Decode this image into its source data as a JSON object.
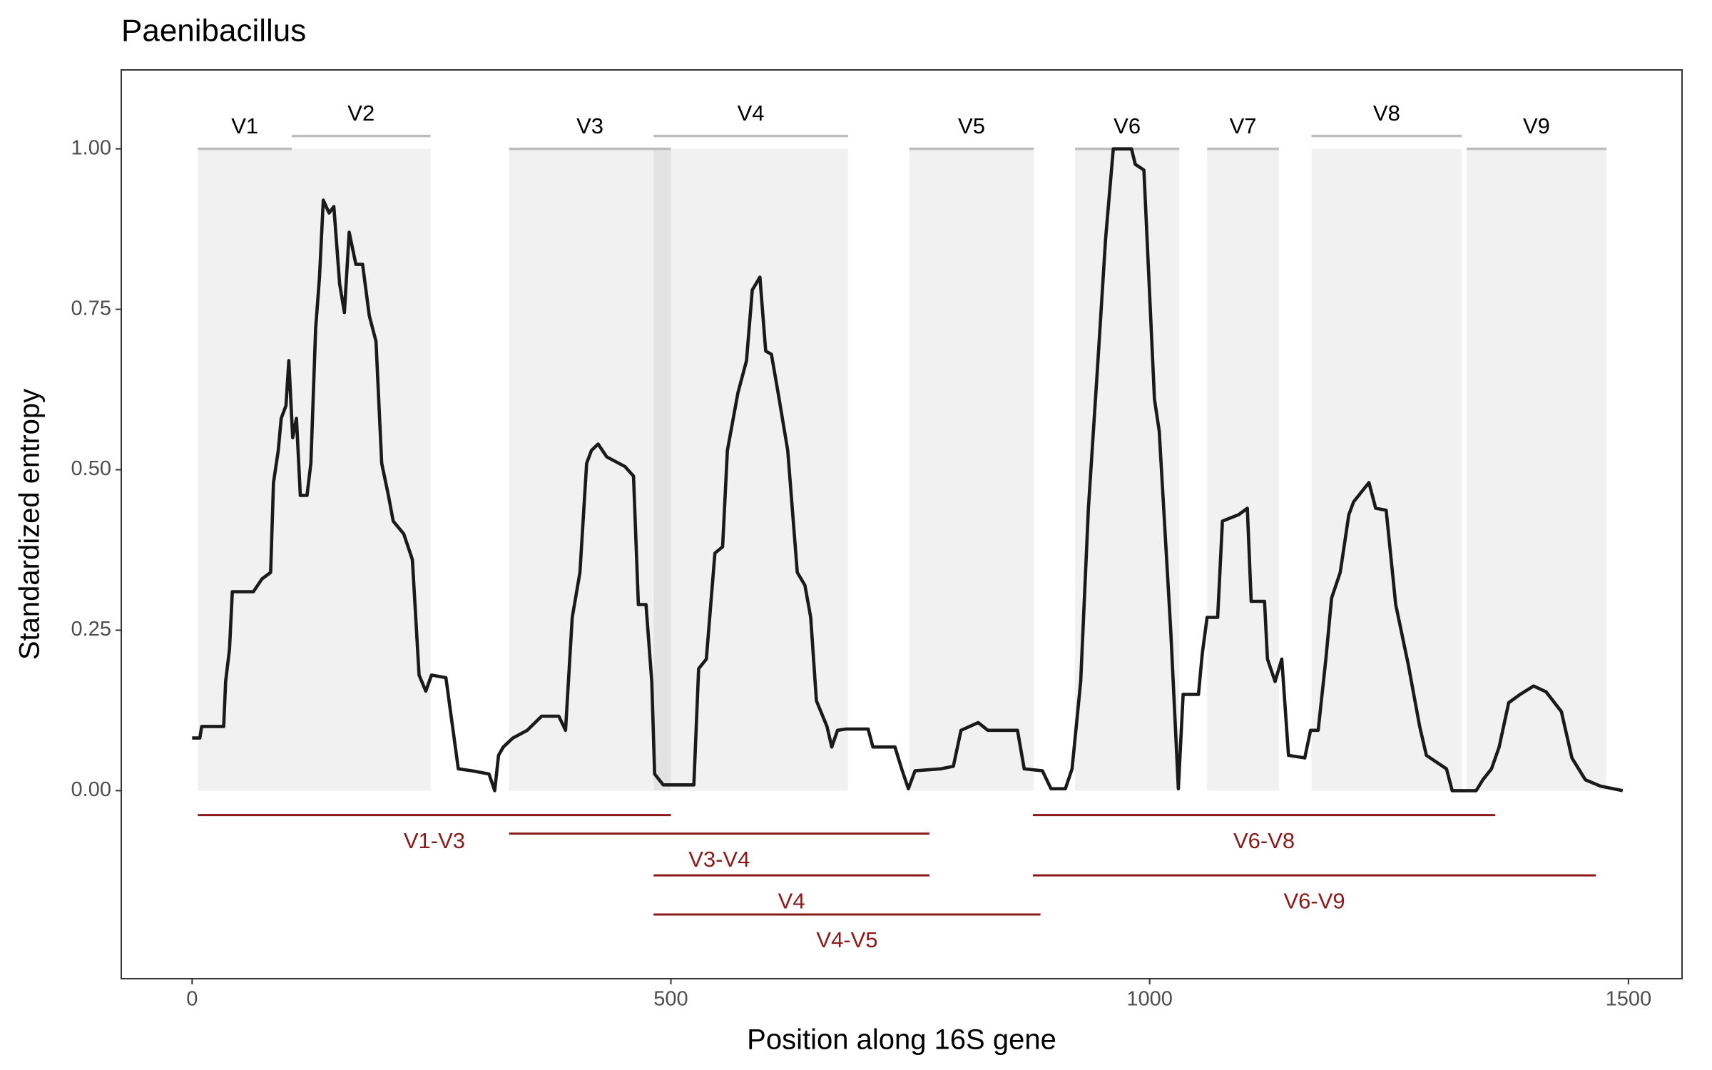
{
  "chart_data": {
    "type": "line",
    "title": "Paenibacillus",
    "x_label": "Position along 16S gene",
    "y_label": "Standardized entropy",
    "color": "#1a1a1a",
    "xlim": [
      -74,
      1556
    ],
    "ylim": [
      -0.293,
      1.123
    ],
    "xticks": [
      0,
      500,
      1000,
      1500
    ],
    "yticks": [
      {
        "value": 0,
        "label": "0.00"
      },
      {
        "value": 0.25,
        "label": "0.25"
      },
      {
        "value": 0.5,
        "label": "0.50"
      },
      {
        "value": 0.75,
        "label": "0.75"
      },
      {
        "value": 1,
        "label": "1.00"
      }
    ],
    "grid": false,
    "x": [
      0,
      8,
      10,
      33,
      35,
      39,
      42,
      64,
      73,
      82,
      85,
      90,
      93,
      98,
      101,
      105,
      109,
      113,
      120,
      124,
      129,
      133,
      137,
      143,
      148,
      154,
      159,
      164,
      171,
      178,
      185,
      192,
      198,
      205,
      210,
      221,
      230,
      237,
      244,
      250,
      265,
      272,
      278,
      292,
      310,
      316,
      320,
      325,
      335,
      350,
      365,
      383,
      390,
      397,
      405,
      412,
      417,
      424,
      433,
      452,
      461,
      466,
      474,
      480,
      483,
      492,
      524,
      529,
      537,
      546,
      554,
      559,
      570,
      579,
      585,
      593,
      599,
      605,
      612,
      622,
      632,
      640,
      646,
      652,
      663,
      668,
      674,
      683,
      706,
      711,
      734,
      741,
      748,
      755,
      782,
      795,
      803,
      821,
      831,
      862,
      869,
      888,
      897,
      912,
      919,
      928,
      936,
      946,
      954,
      962,
      981,
      985,
      994,
      1005,
      1010,
      1022,
      1030,
      1035,
      1051,
      1055,
      1060,
      1071,
      1076,
      1093,
      1102,
      1106,
      1120,
      1123,
      1131,
      1138,
      1145,
      1162,
      1168,
      1176,
      1184,
      1190,
      1199,
      1208,
      1213,
      1229,
      1236,
      1247,
      1257,
      1270,
      1282,
      1289,
      1310,
      1316,
      1341,
      1348,
      1357,
      1365,
      1375,
      1387,
      1401,
      1414,
      1430,
      1441,
      1455,
      1471,
      1494
    ],
    "values": [
      0.082,
      0.082,
      0.1,
      0.1,
      0.17,
      0.22,
      0.31,
      0.31,
      0.33,
      0.34,
      0.48,
      0.53,
      0.58,
      0.6,
      0.67,
      0.55,
      0.58,
      0.46,
      0.46,
      0.51,
      0.72,
      0.8,
      0.92,
      0.9,
      0.91,
      0.79,
      0.745,
      0.87,
      0.82,
      0.82,
      0.74,
      0.7,
      0.51,
      0.46,
      0.42,
      0.4,
      0.36,
      0.18,
      0.155,
      0.18,
      0.176,
      0.1,
      0.034,
      0.031,
      0.026,
      0,
      0.055,
      0.068,
      0.082,
      0.094,
      0.116,
      0.116,
      0.094,
      0.27,
      0.34,
      0.51,
      0.53,
      0.54,
      0.52,
      0.505,
      0.49,
      0.29,
      0.29,
      0.17,
      0.026,
      0.009,
      0.009,
      0.19,
      0.205,
      0.37,
      0.38,
      0.53,
      0.62,
      0.67,
      0.78,
      0.8,
      0.685,
      0.68,
      0.62,
      0.53,
      0.34,
      0.32,
      0.27,
      0.14,
      0.1,
      0.068,
      0.094,
      0.096,
      0.096,
      0.068,
      0.068,
      0.034,
      0.003,
      0.031,
      0.034,
      0.038,
      0.094,
      0.106,
      0.094,
      0.094,
      0.034,
      0.031,
      0.003,
      0.003,
      0.034,
      0.17,
      0.44,
      0.67,
      0.86,
      1,
      1,
      0.976,
      0.967,
      0.61,
      0.56,
      0.25,
      0.003,
      0.15,
      0.15,
      0.214,
      0.27,
      0.27,
      0.42,
      0.43,
      0.44,
      0.295,
      0.295,
      0.205,
      0.17,
      0.205,
      0.055,
      0.051,
      0.094,
      0.094,
      0.205,
      0.3,
      0.34,
      0.43,
      0.45,
      0.48,
      0.44,
      0.437,
      0.29,
      0.197,
      0.1,
      0.055,
      0.034,
      0,
      0,
      0.017,
      0.034,
      0.068,
      0.137,
      0.15,
      0.163,
      0.154,
      0.123,
      0.051,
      0.017,
      0.007,
      0
    ],
    "regions": [
      {
        "name": "V1",
        "start": 6,
        "end": 104,
        "label_y": 1.0
      },
      {
        "name": "V2",
        "start": 104,
        "end": 249,
        "label_y": 1.02
      },
      {
        "name": "V3",
        "start": 331,
        "end": 500,
        "label_y": 1.0
      },
      {
        "name": "V4",
        "start": 482,
        "end": 685,
        "label_y": 1.02
      },
      {
        "name": "V5",
        "start": 749,
        "end": 879,
        "label_y": 1.0
      },
      {
        "name": "V6",
        "start": 922,
        "end": 1031,
        "label_y": 1.0
      },
      {
        "name": "V7",
        "start": 1060,
        "end": 1135,
        "label_y": 1.0
      },
      {
        "name": "V8",
        "start": 1169,
        "end": 1326,
        "label_y": 1.02
      },
      {
        "name": "V9",
        "start": 1331,
        "end": 1477,
        "label_y": 1.0
      }
    ],
    "amplicons": [
      {
        "name": "V1-V3",
        "start": 6,
        "end": 500,
        "y": -0.038
      },
      {
        "name": "V3-V4",
        "start": 331,
        "end": 770,
        "y": -0.067
      },
      {
        "name": "V4",
        "start": 482,
        "end": 770,
        "y": -0.132
      },
      {
        "name": "V4-V5",
        "start": 482,
        "end": 886,
        "y": -0.193
      },
      {
        "name": "V6-V8",
        "start": 878,
        "end": 1361,
        "y": -0.038
      },
      {
        "name": "V6-V9",
        "start": 878,
        "end": 1466,
        "y": -0.132
      }
    ]
  }
}
